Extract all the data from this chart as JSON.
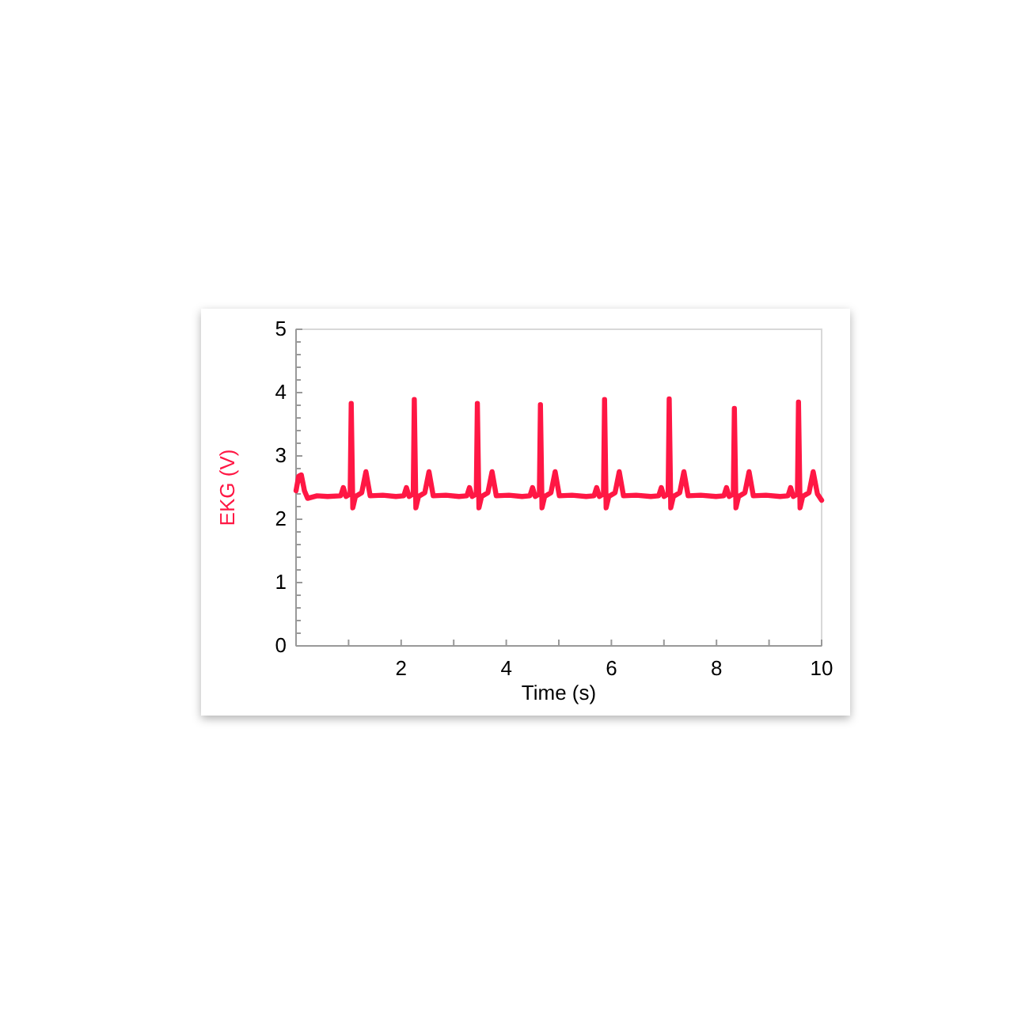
{
  "chart_data": {
    "type": "line",
    "xlabel": "Time (s)",
    "ylabel": "EKG (V)",
    "xlim": [
      0,
      10
    ],
    "ylim": [
      0,
      5
    ],
    "xticks": [
      {
        "value": 1,
        "label": null
      },
      2,
      {
        "value": 3,
        "label": null
      },
      4,
      {
        "value": 5,
        "label": null
      },
      6,
      {
        "value": 7,
        "label": null
      },
      8,
      {
        "value": 9,
        "label": null
      },
      10
    ],
    "yticks": [
      0,
      {
        "value": 0.2,
        "label": null
      },
      {
        "value": 0.4,
        "label": null
      },
      {
        "value": 0.6,
        "label": null
      },
      {
        "value": 0.8,
        "label": null
      },
      1,
      {
        "value": 1.2,
        "label": null
      },
      {
        "value": 1.4,
        "label": null
      },
      {
        "value": 1.6,
        "label": null
      },
      {
        "value": 1.8,
        "label": null
      },
      2,
      {
        "value": 2.2,
        "label": null
      },
      {
        "value": 2.4,
        "label": null
      },
      {
        "value": 2.6,
        "label": null
      },
      {
        "value": 2.8,
        "label": null
      },
      3,
      {
        "value": 3.2,
        "label": null
      },
      {
        "value": 3.4,
        "label": null
      },
      {
        "value": 3.6,
        "label": null
      },
      {
        "value": 3.8,
        "label": null
      },
      4,
      {
        "value": 4.2,
        "label": null
      },
      {
        "value": 4.4,
        "label": null
      },
      {
        "value": 4.6,
        "label": null
      },
      {
        "value": 4.8,
        "label": null
      },
      5
    ],
    "grid": false,
    "marker": "none",
    "line_style": "solid",
    "series": [
      {
        "color": "#ff1744",
        "x": [
          0,
          0.05,
          0.1,
          0.16,
          0.22,
          0.4,
          0.6,
          0.85,
          0.9,
          0.95,
          1.03,
          1.05,
          1.08,
          1.13,
          1.25,
          1.33,
          1.41,
          1.65,
          1.9,
          2.05,
          2.1,
          2.15,
          2.23,
          2.25,
          2.28,
          2.33,
          2.45,
          2.53,
          2.61,
          2.85,
          3.1,
          3.25,
          3.3,
          3.35,
          3.43,
          3.45,
          3.48,
          3.53,
          3.65,
          3.73,
          3.81,
          4.05,
          4.3,
          4.45,
          4.5,
          4.55,
          4.63,
          4.65,
          4.68,
          4.73,
          4.85,
          4.93,
          5.01,
          5.25,
          5.52,
          5.67,
          5.72,
          5.77,
          5.85,
          5.87,
          5.9,
          5.95,
          6.07,
          6.15,
          6.23,
          6.47,
          6.75,
          6.9,
          6.95,
          7.0,
          7.08,
          7.1,
          7.13,
          7.18,
          7.3,
          7.38,
          7.46,
          7.7,
          7.99,
          8.14,
          8.19,
          8.24,
          8.32,
          8.34,
          8.37,
          8.42,
          8.54,
          8.62,
          8.7,
          8.94,
          9.21,
          9.36,
          9.41,
          9.46,
          9.54,
          9.56,
          9.59,
          9.64,
          9.76,
          9.84,
          9.92,
          10
        ],
        "values": [
          2.45,
          2.68,
          2.7,
          2.45,
          2.33,
          2.37,
          2.36,
          2.37,
          2.5,
          2.36,
          2.4,
          3.83,
          2.18,
          2.36,
          2.42,
          2.75,
          2.37,
          2.38,
          2.36,
          2.37,
          2.5,
          2.36,
          2.4,
          3.89,
          2.18,
          2.36,
          2.42,
          2.75,
          2.37,
          2.38,
          2.36,
          2.37,
          2.5,
          2.36,
          2.4,
          3.83,
          2.18,
          2.36,
          2.42,
          2.75,
          2.37,
          2.38,
          2.36,
          2.37,
          2.5,
          2.36,
          2.4,
          3.81,
          2.18,
          2.36,
          2.42,
          2.75,
          2.37,
          2.38,
          2.36,
          2.37,
          2.5,
          2.36,
          2.4,
          3.89,
          2.18,
          2.36,
          2.42,
          2.75,
          2.37,
          2.38,
          2.36,
          2.37,
          2.5,
          2.36,
          2.4,
          3.9,
          2.18,
          2.36,
          2.42,
          2.75,
          2.37,
          2.38,
          2.36,
          2.37,
          2.5,
          2.36,
          2.4,
          3.75,
          2.18,
          2.36,
          2.42,
          2.75,
          2.37,
          2.38,
          2.36,
          2.37,
          2.5,
          2.36,
          2.4,
          3.85,
          2.18,
          2.36,
          2.42,
          2.75,
          2.4,
          2.3
        ]
      }
    ]
  }
}
